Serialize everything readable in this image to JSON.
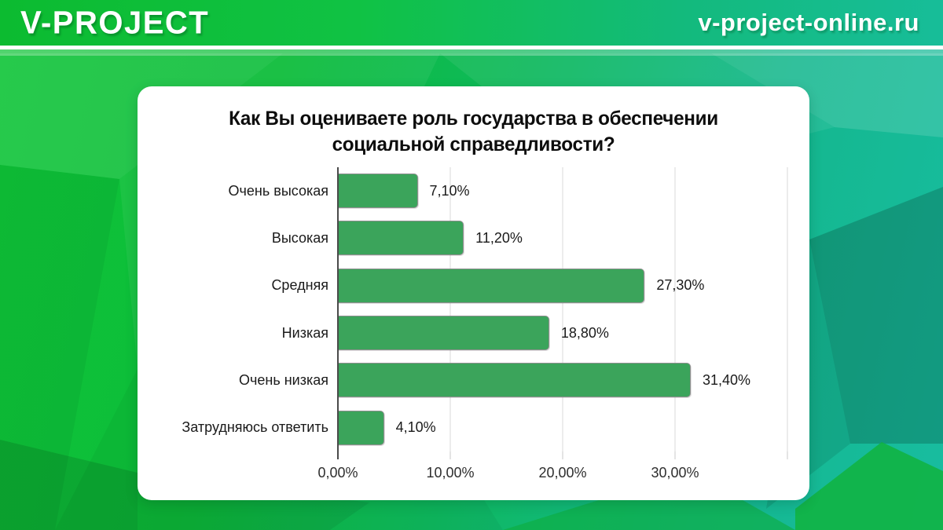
{
  "header": {
    "brand": "V-PROJECT",
    "website": "v-project-online.ru"
  },
  "colors": {
    "bar_green": "#3ba45b",
    "background_green": "#0ec437",
    "background_teal": "#17bd99",
    "card_white": "#ffffff",
    "grid_gray": "#dadada"
  },
  "chart_data": {
    "type": "bar",
    "orientation": "horizontal",
    "title": "Как Вы оцениваете роль государства в обеспечении социальной справедливости?",
    "title_lines": [
      "Как Вы оцениваете роль государства в обеспечении",
      "социальной справедливости?"
    ],
    "categories": [
      "Очень высокая",
      "Высокая",
      "Средняя",
      "Низкая",
      "Очень низкая",
      "Затрудняюсь ответить"
    ],
    "values": [
      7.1,
      11.2,
      27.3,
      18.8,
      31.4,
      4.1
    ],
    "value_labels": [
      "7,10%",
      "11,20%",
      "27,30%",
      "18,80%",
      "31,40%",
      "4,10%"
    ],
    "x_ticks": [
      "0,00%",
      "10,00%",
      "20,00%",
      "30,00%"
    ],
    "grid_values": [
      0,
      10,
      20,
      30,
      40
    ],
    "xlim": [
      0,
      40
    ],
    "bar_color": "#3ba45b",
    "grid": true,
    "legend": false
  }
}
